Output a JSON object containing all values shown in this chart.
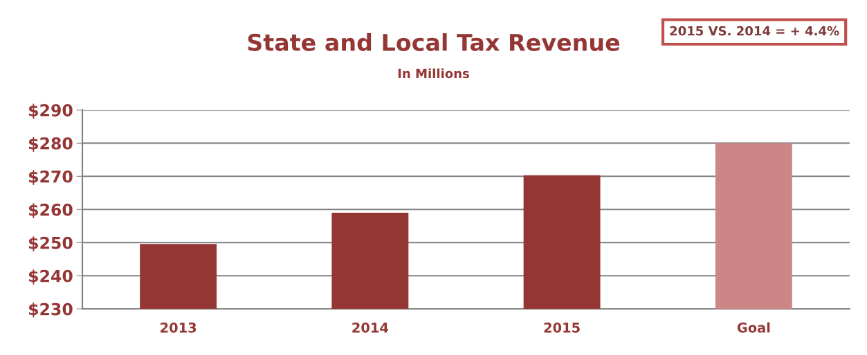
{
  "chart_data": {
    "type": "bar",
    "title": "State and Local Tax Revenue",
    "subtitle": "In Millions",
    "categories": [
      "2013",
      "2014",
      "2015",
      "Goal"
    ],
    "values": [
      249.6,
      259.0,
      270.3,
      280
    ],
    "colors": [
      "#943634",
      "#943634",
      "#943634",
      "#cd8686"
    ],
    "ylim": [
      230,
      290
    ],
    "yticks": [
      {
        "value": 230,
        "label": "$230"
      },
      {
        "value": 240,
        "label": "$240"
      },
      {
        "value": 250,
        "label": "$250"
      },
      {
        "value": 260,
        "label": "$260"
      },
      {
        "value": 270,
        "label": "$270"
      },
      {
        "value": 280,
        "label": "$280"
      },
      {
        "value": 290,
        "label": "$290"
      }
    ],
    "grid": "y",
    "annotations": [
      "2015 VS. 2014 = + 4.4%"
    ]
  }
}
